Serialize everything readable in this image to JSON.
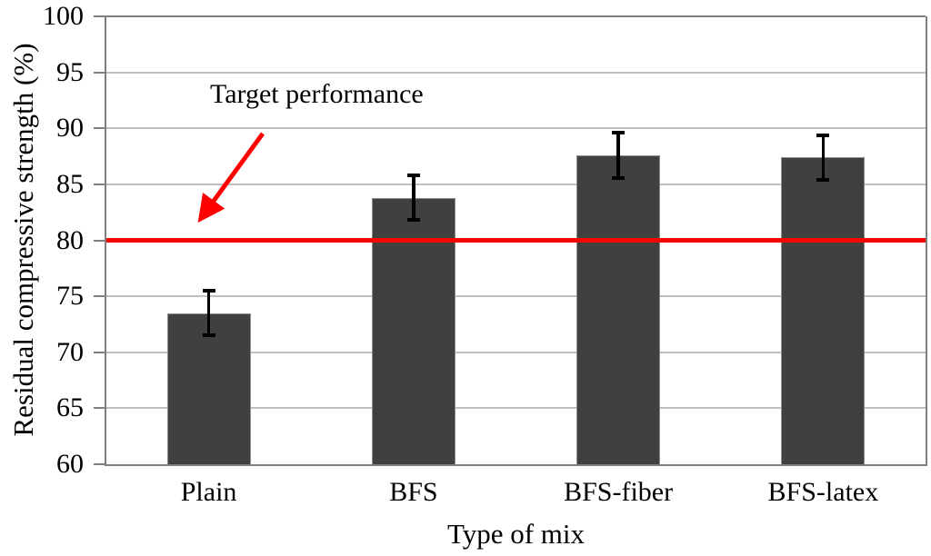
{
  "chart_data": {
    "type": "bar",
    "title": "",
    "xlabel": "Type of mix",
    "ylabel": "Residual compressive strength (%)",
    "categories": [
      "Plain",
      "BFS",
      "BFS-fiber",
      "BFS-latex"
    ],
    "values": [
      73.5,
      83.8,
      87.6,
      87.4
    ],
    "error_bars_plus_minus": [
      2.0,
      2.0,
      2.0,
      2.0
    ],
    "ylim": [
      60,
      100
    ],
    "yticks": [
      60,
      65,
      70,
      75,
      80,
      85,
      90,
      95,
      100
    ],
    "grid": true,
    "legend_position": "none",
    "target_line": {
      "value": 80,
      "label": "Target performance"
    },
    "colors": {
      "bar_fill": "#404040",
      "bar_border": "#8C8C8C",
      "error_bar": "#000000",
      "target_line": "#FF0000",
      "gridline": "#BFBFBF",
      "axis": "#7F7F7F",
      "text": "#000000",
      "background": "#FFFFFF"
    }
  }
}
